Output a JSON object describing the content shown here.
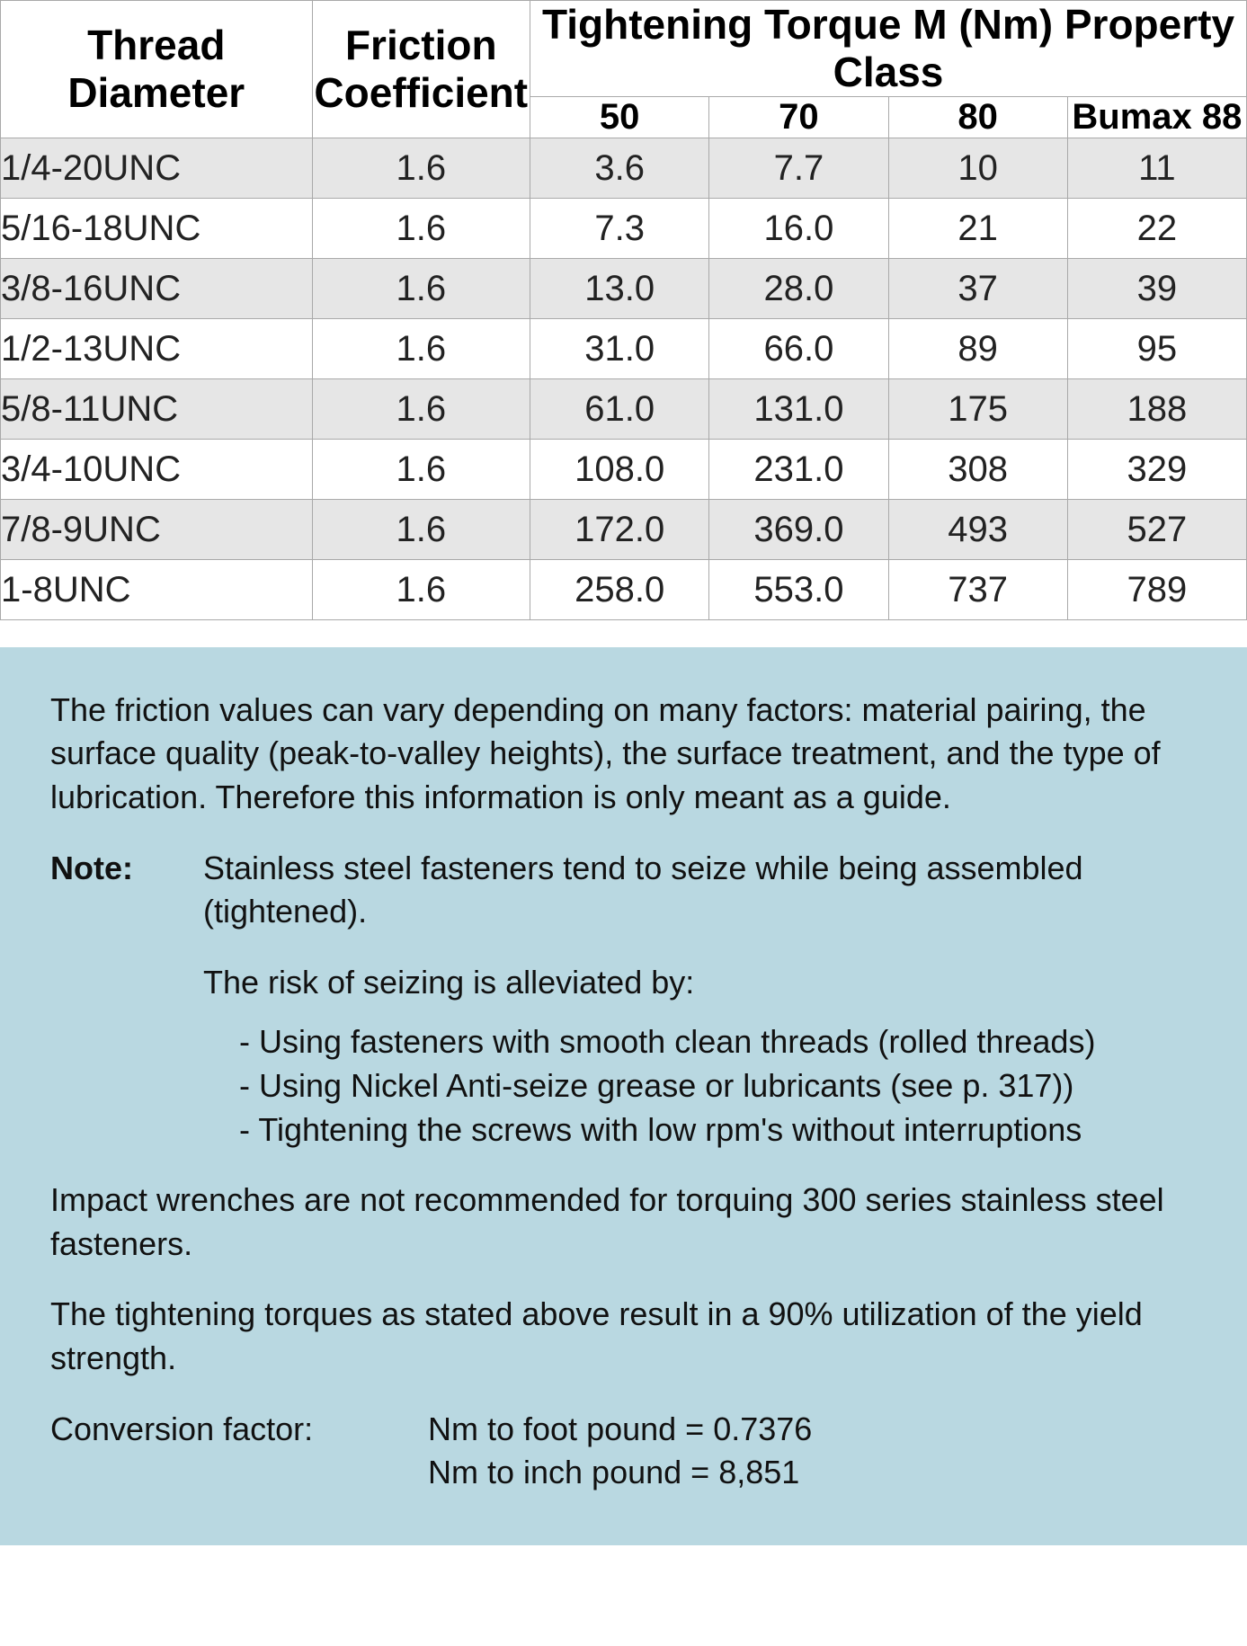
{
  "table": {
    "header": {
      "thread": "Thread Diameter",
      "friction": "Friction Coefficient",
      "torque_group": "Tightening Torque M (Nm) Property Class",
      "classes": [
        "50",
        "70",
        "80",
        "Bumax 88"
      ]
    },
    "col_widths_pct": [
      25,
      17.5,
      14.375,
      14.375,
      14.375,
      14.375
    ],
    "rows": [
      {
        "thread": "1/4-20UNC",
        "fric": "1.6",
        "v": [
          "3.6",
          "7.7",
          "10",
          "11"
        ]
      },
      {
        "thread": "5/16-18UNC",
        "fric": "1.6",
        "v": [
          "7.3",
          "16.0",
          "21",
          "22"
        ]
      },
      {
        "thread": "3/8-16UNC",
        "fric": "1.6",
        "v": [
          "13.0",
          "28.0",
          "37",
          "39"
        ]
      },
      {
        "thread": "1/2-13UNC",
        "fric": "1.6",
        "v": [
          "31.0",
          "66.0",
          "89",
          "95"
        ]
      },
      {
        "thread": "5/8-11UNC",
        "fric": "1.6",
        "v": [
          "61.0",
          "131.0",
          "175",
          "188"
        ]
      },
      {
        "thread": "3/4-10UNC",
        "fric": "1.6",
        "v": [
          "108.0",
          "231.0",
          "308",
          "329"
        ]
      },
      {
        "thread": "7/8-9UNC",
        "fric": "1.6",
        "v": [
          "172.0",
          "369.0",
          "493",
          "527"
        ]
      },
      {
        "thread": "1-8UNC",
        "fric": "1.6",
        "v": [
          "258.0",
          "553.0",
          "737",
          "789"
        ]
      }
    ],
    "stripe_color": "#e6e6e6",
    "border_color": "#a9a9a9"
  },
  "notes": {
    "intro": "The friction values can vary depending on many factors: material pairing, the surface quality (peak-to-valley heights), the surface treatment, and the type of lubrication. Therefore this information is only meant as a guide.",
    "note_label": "Note:",
    "note_lead": "Stainless steel fasteners tend to seize while being assembled (tightened).",
    "risk_intro": "The risk of seizing is alleviated by:",
    "risk_items": [
      "Using fasteners with smooth clean threads (rolled threads)",
      "Using Nickel Anti-seize grease or lubricants (see p. 317))",
      "Tightening the screws with low rpm's without interruptions"
    ],
    "impact": "Impact wrenches are not recommended for torquing 300 series stainless steel fasteners.",
    "utilization": "The tightening torques as stated above result in a 90% utilization of the yield strength.",
    "conv_label": "Conversion factor:",
    "conv_lines": [
      "Nm to foot pound = 0.7376",
      "Nm to inch pound = 8,851"
    ],
    "box_bg": "#b9d8e1"
  }
}
